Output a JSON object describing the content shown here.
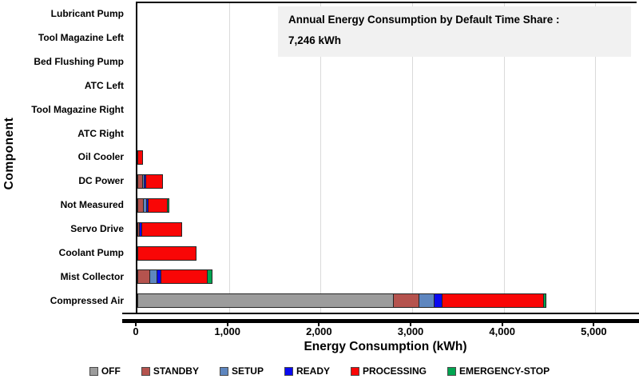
{
  "title_box": {
    "line1": "Annual Energy Consumption by Default Time Share :",
    "line2": "7,246 kWh"
  },
  "chart_data": {
    "type": "bar",
    "orientation": "horizontal",
    "stacked": true,
    "title": "Annual Energy Consumption by Default Time Share : 7,246 kWh",
    "total": "7,246 kWh",
    "xlabel": "Energy Consumption (kWh)",
    "ylabel": "Component",
    "xlim": [
      0,
      5450
    ],
    "xticks": [
      0,
      1000,
      2000,
      3000,
      4000,
      5000
    ],
    "xtick_labels": [
      "0",
      "1,000",
      "2,000",
      "3,000",
      "4,000",
      "5,000"
    ],
    "grid": "vertical-gridlines-on",
    "legend_position": "bottom",
    "categories": [
      "Lubricant Pump",
      "Tool Magazine Left",
      "Bed Flushing Pump",
      "ATC Left",
      "Tool Magazine Right",
      "ATC Right",
      "Oil Cooler",
      "DC Power",
      "Not Measured",
      "Servo Drive",
      "Coolant Pump",
      "Mist Collector",
      "Compressed Air"
    ],
    "series": [
      {
        "name": "OFF",
        "color": "#9C9C9C",
        "values": [
          0,
          0,
          0,
          0,
          0,
          0,
          0,
          0,
          0,
          0,
          0,
          0,
          2800
        ]
      },
      {
        "name": "STANDBY",
        "color": "#B5534E",
        "values": [
          0,
          0,
          0,
          0,
          0,
          0,
          0,
          58,
          72,
          26,
          0,
          136,
          285
        ]
      },
      {
        "name": "SETUP",
        "color": "#5E86BF",
        "values": [
          0,
          0,
          0,
          0,
          0,
          0,
          0,
          26,
          38,
          0,
          0,
          87,
          180
        ]
      },
      {
        "name": "READY",
        "color": "#0A0AF0",
        "values": [
          0,
          0,
          0,
          0,
          0,
          0,
          0,
          26,
          14,
          37,
          0,
          52,
          90
        ]
      },
      {
        "name": "PROCESSING",
        "color": "#F90606",
        "values": [
          0,
          0,
          0,
          0,
          0,
          0,
          59,
          192,
          224,
          444,
          645,
          515,
          1120
        ]
      },
      {
        "name": "EMERGENCY-STOP",
        "color": "#00A551",
        "values": [
          0,
          0,
          0,
          0,
          0,
          0,
          0,
          0,
          20,
          0,
          0,
          63,
          37
        ]
      }
    ]
  },
  "colors": {
    "gridline": "#DADADA",
    "axis": "#000000",
    "segment_border": "#262626",
    "title_box_bg": "#F1F1F1"
  }
}
